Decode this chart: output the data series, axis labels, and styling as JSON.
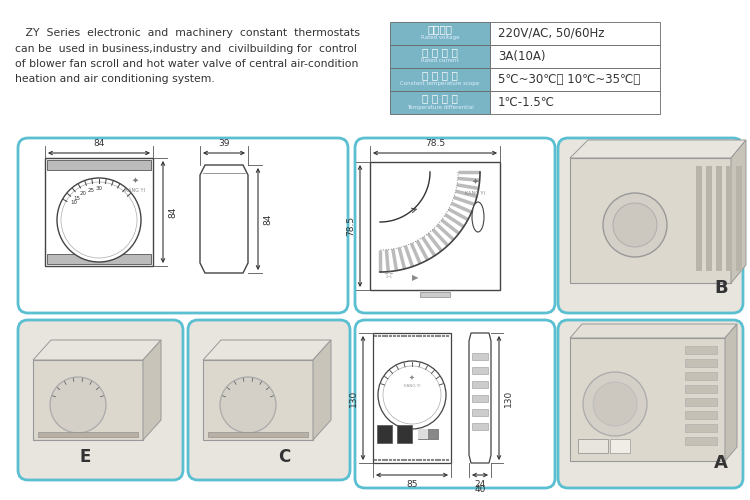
{
  "bg_color": "#ffffff",
  "text_color": "#333333",
  "blue_border": "#5abfd0",
  "table_header_bg": "#7ab5c5",
  "body_text_lines": [
    "   ZY  Series  electronic  and  machinery  constant  thermostats",
    "can be  used in business,industry and  civilbuilding for  control",
    "of blower fan scroll and hot water valve of central air-condition",
    "heation and air conditioning system."
  ],
  "table_rows": [
    {
      "zh": "额定电压",
      "en": "Rated voltage",
      "value": "220V/AC, 50/60Hz"
    },
    {
      "zh": "额 定 电 流",
      "en": "Rated current",
      "value": "3A(10A)"
    },
    {
      "zh": "恒 温 范 围",
      "en": "Constant temperature scope",
      "value": "5℃~30℃（ 10℃~35℃）"
    },
    {
      "zh": "温 度 偏 差",
      "en": "Temperature differential",
      "value": "1℃-1.5℃"
    }
  ],
  "dim_84": "84",
  "dim_39": "39",
  "dim_785": "78.5",
  "dim_130": "130",
  "dim_85": "85",
  "dim_24": "24",
  "dim_40": "40",
  "label_B": "B",
  "label_E": "E",
  "label_C": "C",
  "label_A": "A"
}
